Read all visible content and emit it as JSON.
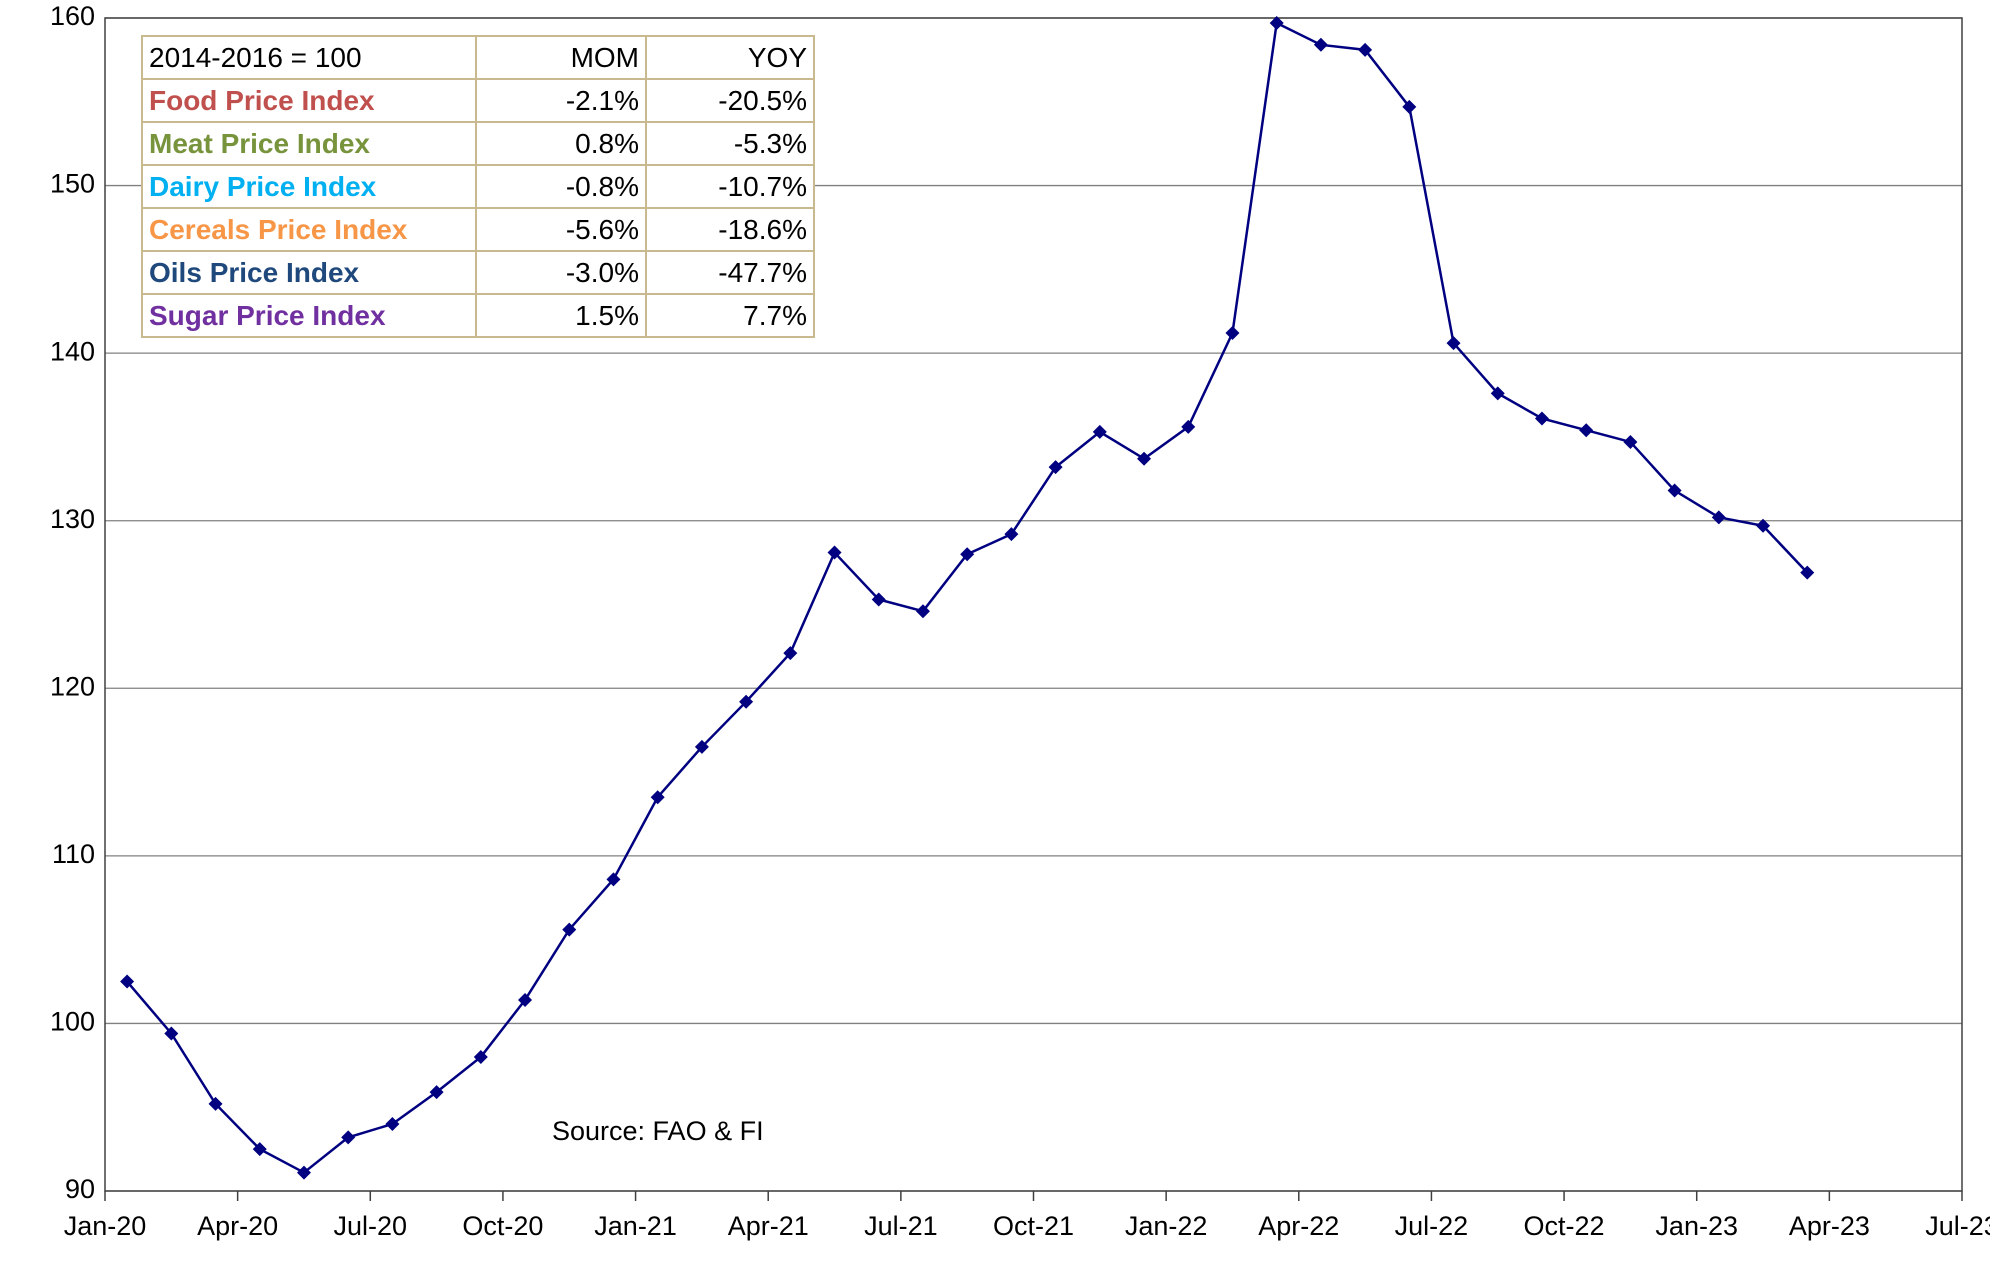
{
  "chart_data": {
    "type": "line",
    "x": [
      "2020-01",
      "2020-02",
      "2020-03",
      "2020-04",
      "2020-05",
      "2020-06",
      "2020-07",
      "2020-08",
      "2020-09",
      "2020-10",
      "2020-11",
      "2020-12",
      "2021-01",
      "2021-02",
      "2021-03",
      "2021-04",
      "2021-05",
      "2021-06",
      "2021-07",
      "2021-08",
      "2021-09",
      "2021-10",
      "2021-11",
      "2021-12",
      "2022-01",
      "2022-02",
      "2022-03",
      "2022-04",
      "2022-05",
      "2022-06",
      "2022-07",
      "2022-08",
      "2022-09",
      "2022-10",
      "2022-11",
      "2022-12",
      "2023-01",
      "2023-02",
      "2023-03"
    ],
    "series": [
      {
        "color": "#000080",
        "values": [
          102.5,
          99.4,
          95.2,
          92.5,
          91.1,
          93.2,
          94.0,
          95.9,
          98.0,
          101.4,
          105.6,
          108.6,
          113.5,
          116.5,
          119.2,
          122.1,
          128.1,
          125.3,
          124.6,
          128.0,
          129.2,
          133.2,
          135.3,
          133.7,
          135.6,
          141.2,
          159.7,
          158.4,
          158.1,
          154.7,
          140.6,
          137.6,
          136.1,
          135.4,
          134.7,
          131.8,
          130.2,
          129.7,
          126.9
        ]
      }
    ],
    "xlim": [
      "2020-01",
      "2023-07"
    ],
    "xticks": [
      {
        "value": "2020-01",
        "label": "Jan-20"
      },
      {
        "value": "2020-04",
        "label": "Apr-20"
      },
      {
        "value": "2020-07",
        "label": "Jul-20"
      },
      {
        "value": "2020-10",
        "label": "Oct-20"
      },
      {
        "value": "2021-01",
        "label": "Jan-21"
      },
      {
        "value": "2021-04",
        "label": "Apr-21"
      },
      {
        "value": "2021-07",
        "label": "Jul-21"
      },
      {
        "value": "2021-10",
        "label": "Oct-21"
      },
      {
        "value": "2022-01",
        "label": "Jan-22"
      },
      {
        "value": "2022-04",
        "label": "Apr-22"
      },
      {
        "value": "2022-07",
        "label": "Jul-22"
      },
      {
        "value": "2022-10",
        "label": "Oct-22"
      },
      {
        "value": "2023-01",
        "label": "Jan-23"
      },
      {
        "value": "2023-04",
        "label": "Apr-23"
      },
      {
        "value": "2023-07",
        "label": "Jul-23"
      }
    ],
    "ylim": [
      90,
      160
    ],
    "yticks": [
      90,
      100,
      110,
      120,
      130,
      140,
      150,
      160
    ],
    "grid": true,
    "annotation": "Source: FAO & FI",
    "table": {
      "header": [
        "2014-2016 = 100",
        "MOM",
        "YOY"
      ],
      "rows": [
        {
          "cells": [
            "Food Price Index",
            "-2.1%",
            "-20.5%"
          ],
          "color": "#c0504d"
        },
        {
          "cells": [
            "Meat Price Index",
            "0.8%",
            "-5.3%"
          ],
          "color": "#77933c"
        },
        {
          "cells": [
            "Dairy Price Index",
            "-0.8%",
            "-10.7%"
          ],
          "color": "#00b0f0"
        },
        {
          "cells": [
            "Cereals Price Index",
            "-5.6%",
            "-18.6%"
          ],
          "color": "#f79646"
        },
        {
          "cells": [
            "Oils Price Index",
            "-3.0%",
            "-47.7%"
          ],
          "color": "#1f497d"
        },
        {
          "cells": [
            "Sugar Price Index",
            "1.5%",
            "7.7%"
          ],
          "color": "#7030a0"
        }
      ]
    }
  }
}
